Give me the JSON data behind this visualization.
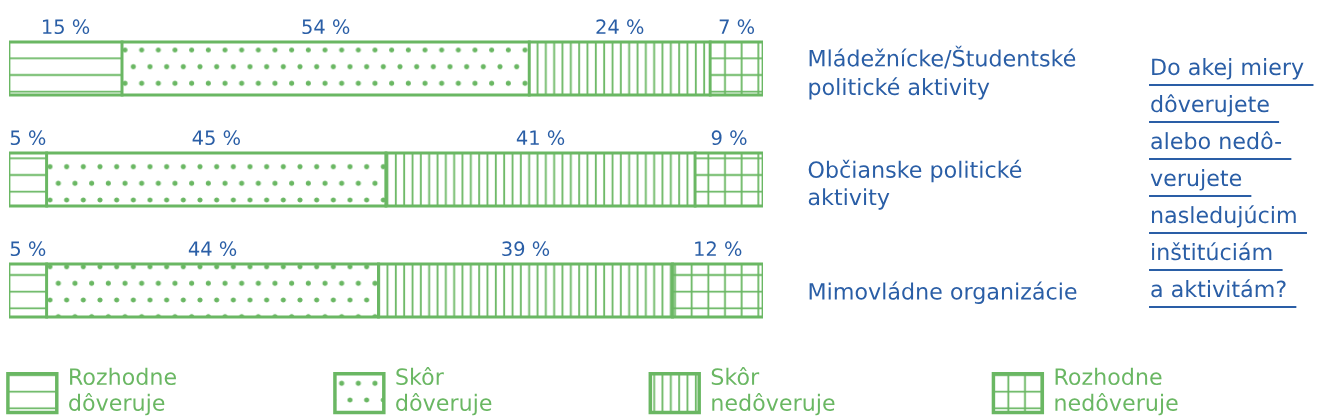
{
  "chart_data": {
    "type": "bar",
    "orientation": "horizontal",
    "stacked": true,
    "title": "Do akej miery\ndôverujete\nalebo nedô-\nverujete\nnasledujúcim\ninštitúciám\na aktivitám?",
    "categories": [
      "Mládežnícke/Študentské politické aktivity",
      "Občianske politické aktivity",
      "Mimovládne organizácie"
    ],
    "tick_labels": "y",
    "legend": "bottom",
    "series": [
      {
        "name": "Rozhodne dôveruje",
        "color": "#6ab763",
        "values": [
          15,
          5,
          5
        ],
        "value_labels": [
          "15 %",
          "5 %",
          "5 %"
        ]
      },
      {
        "name": "Skôr dôveruje",
        "color": "#6ab763",
        "values": [
          54,
          45,
          44
        ],
        "value_labels": [
          "54 %",
          "45 %",
          "44 %"
        ]
      },
      {
        "name": "Skôr nedôveruje",
        "color": "#6ab763",
        "values": [
          24,
          41,
          39
        ],
        "value_labels": [
          "24 %",
          "41 %",
          "39 %"
        ]
      },
      {
        "name": "Rozhodne nedôveruje",
        "color": "#6ab763",
        "values": [
          7,
          9,
          12
        ],
        "value_labels": [
          "7 %",
          "9 %",
          "12 %"
        ]
      }
    ]
  }
}
